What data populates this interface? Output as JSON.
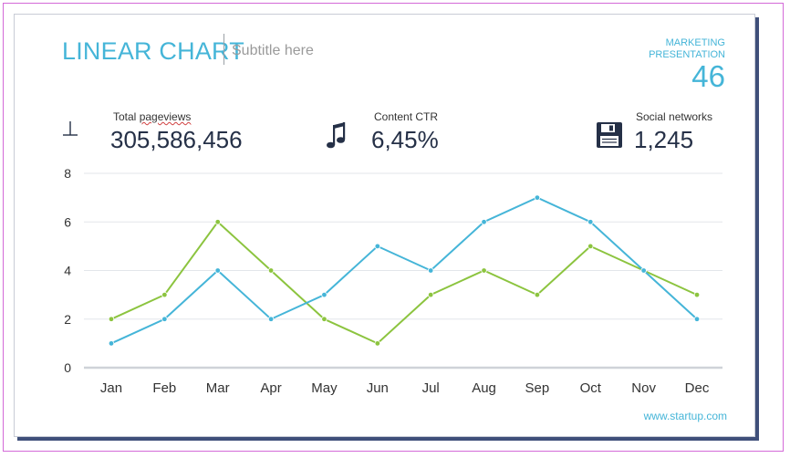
{
  "header": {
    "title": "LINEAR CHART",
    "subtitle": "Subtitle here",
    "marketing_line1": "MARKETING",
    "marketing_line2": "PRESENTATION",
    "page_number": "46"
  },
  "stats": [
    {
      "label": "Total pageviews",
      "value": "305,586,456",
      "icon": "pin-icon"
    },
    {
      "label": "Content CTR",
      "value": "6,45%",
      "icon": "music-note-icon"
    },
    {
      "label": "Social networks",
      "value": "1,245",
      "icon": "floppy-disk-icon"
    }
  ],
  "footer": {
    "link": "www.startup.com"
  },
  "colors": {
    "series_1": "#45b5d8",
    "series_2": "#8cc43f",
    "title": "#45b5d8"
  },
  "chart_data": {
    "type": "line",
    "title": "",
    "xlabel": "",
    "ylabel": "",
    "categories": [
      "Jan",
      "Feb",
      "Mar",
      "Apr",
      "May",
      "Jun",
      "Jul",
      "Aug",
      "Sep",
      "Oct",
      "Nov",
      "Dec"
    ],
    "series": [
      {
        "color": "#45b5d8",
        "values": [
          1,
          2,
          4,
          2,
          3,
          5,
          4,
          6,
          7,
          6,
          4,
          2
        ]
      },
      {
        "color": "#8cc43f",
        "values": [
          2,
          3,
          6,
          4,
          2,
          1,
          3,
          4,
          3,
          5,
          4,
          3
        ]
      }
    ],
    "ylim": [
      0,
      8
    ],
    "yticks": [
      0,
      2,
      4,
      6,
      8
    ],
    "grid": true,
    "legend": "none"
  }
}
